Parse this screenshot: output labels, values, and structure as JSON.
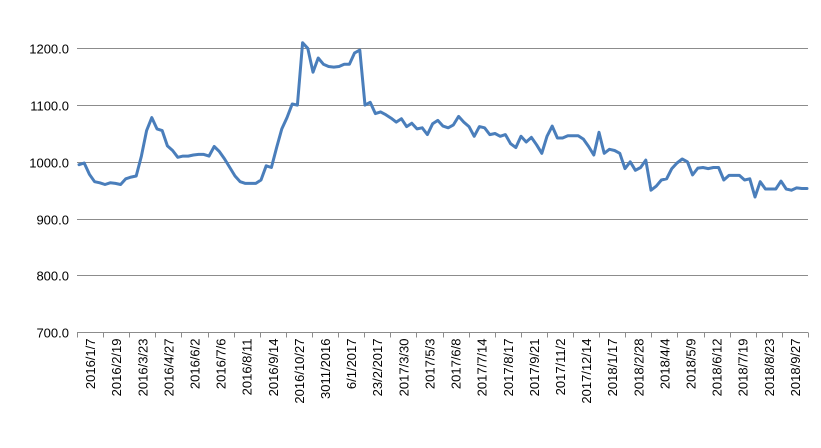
{
  "chart_data": {
    "type": "line",
    "title": "",
    "xlabel": "",
    "ylabel": "",
    "ylim": [
      700,
      1250
    ],
    "yticks": [
      "700.0",
      "800.0",
      "900.0",
      "1000.0",
      "1100.0",
      "1200.0"
    ],
    "ytick_values": [
      700,
      800,
      900,
      1000,
      1100,
      1200
    ],
    "grid": true,
    "legend": "none",
    "line_color": "#4a7ebb",
    "xtick_labels": [
      "2016/1/7",
      "2016/2/19",
      "2016/3/23",
      "2016/4/27",
      "2016/6/2",
      "2016/7/6",
      "2016/8/11",
      "2016/9/14",
      "2016/10/27",
      "3011/2016",
      "6/1/2017",
      "23/2/2017",
      "2017/3/30",
      "2017/5/3",
      "2017/6/8",
      "2017/7/14",
      "2017/8/17",
      "2017/9/21",
      "2017/11/2",
      "2017/12/14",
      "2018/1/17",
      "2018/2/28",
      "2018/4/4",
      "2018/5/9",
      "2018/6/12",
      "2018/7/19",
      "2018/8/23",
      "2018/9/27"
    ],
    "series": [
      {
        "values": [
          995,
          998,
          978,
          965,
          963,
          960,
          963,
          962,
          960,
          970,
          973,
          975,
          1010,
          1055,
          1078,
          1058,
          1055,
          1028,
          1020,
          1008,
          1010,
          1010,
          1012,
          1013,
          1013,
          1010,
          1027,
          1018,
          1005,
          990,
          975,
          965,
          962,
          962,
          962,
          968,
          993,
          990,
          1025,
          1058,
          1078,
          1102,
          1100,
          1210,
          1200,
          1158,
          1183,
          1172,
          1168,
          1167,
          1168,
          1172,
          1172,
          1192,
          1197,
          1100,
          1105,
          1085,
          1088,
          1083,
          1077,
          1070,
          1076,
          1062,
          1068,
          1058,
          1060,
          1048,
          1067,
          1073,
          1063,
          1060,
          1065,
          1080,
          1070,
          1062,
          1045,
          1062,
          1060,
          1048,
          1050,
          1045,
          1048,
          1032,
          1025,
          1045,
          1035,
          1043,
          1030,
          1015,
          1045,
          1063,
          1042,
          1042,
          1046,
          1046,
          1046,
          1040,
          1027,
          1012,
          1052,
          1015,
          1022,
          1020,
          1015,
          988,
          1000,
          985,
          990,
          1003,
          950,
          957,
          968,
          970,
          988,
          998,
          1005,
          1000,
          977,
          989,
          990,
          988,
          990,
          990,
          968,
          976,
          976,
          976,
          968,
          970,
          938,
          965,
          952,
          952,
          952,
          966,
          952,
          950,
          954,
          953,
          953
        ]
      }
    ]
  }
}
